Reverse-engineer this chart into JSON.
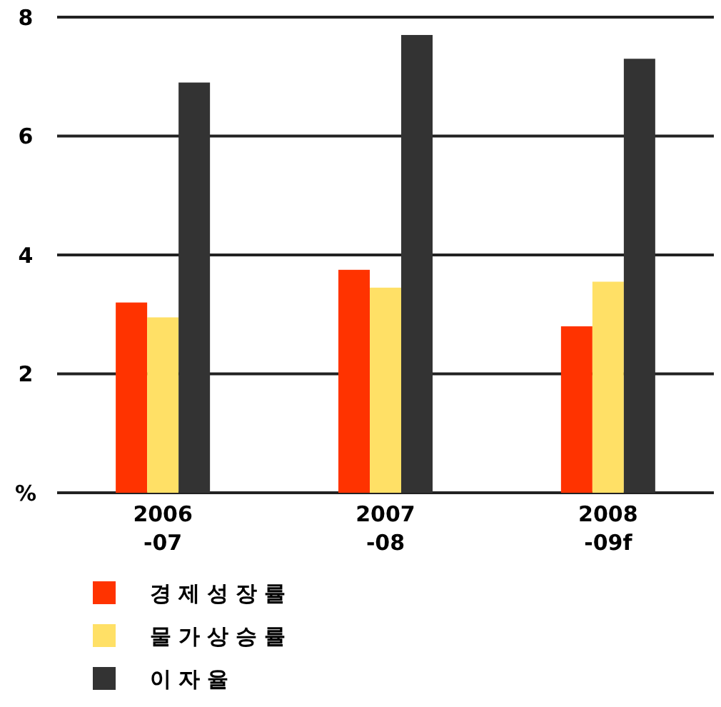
{
  "chart_data": {
    "type": "bar",
    "categories": [
      "2006\n-07",
      "2007\n-08",
      "2008\n-09f"
    ],
    "series": [
      {
        "name": "경제성장률",
        "color": "#ff3300",
        "values": [
          3.2,
          3.75,
          2.8
        ]
      },
      {
        "name": "물가상승률",
        "color": "#ffe066",
        "values": [
          2.95,
          3.45,
          3.55
        ]
      },
      {
        "name": "이자율",
        "color": "#333333",
        "values": [
          6.9,
          7.7,
          7.3
        ]
      }
    ],
    "ylim": [
      0,
      8
    ],
    "yticks": [
      {
        "value": 0,
        "label": "%"
      },
      2,
      4,
      6,
      8
    ],
    "grid": "y",
    "legend": "bottom"
  }
}
